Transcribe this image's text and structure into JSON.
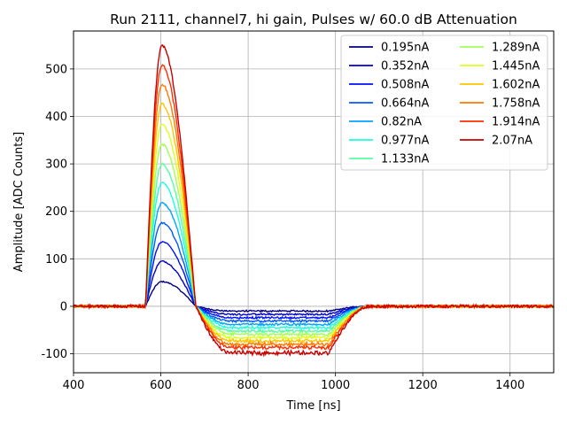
{
  "chart_data": {
    "type": "line",
    "title": "Run 2111, channel7, hi gain, Pulses w/ 60.0 dB Attenuation",
    "xlabel": "Time [ns]",
    "ylabel": "Amplitude [ADC Counts]",
    "xlim": [
      400,
      1500
    ],
    "ylim": [
      -140,
      580
    ],
    "xticks": [
      400,
      600,
      800,
      1000,
      1200,
      1400
    ],
    "yticks": [
      -100,
      0,
      100,
      200,
      300,
      400,
      500
    ],
    "grid": true,
    "legend_position": "top-right",
    "legend_columns": 2,
    "series": [
      {
        "name": "0.195nA",
        "color": "#00007f",
        "peak": 52,
        "undershoot": -10
      },
      {
        "name": "0.352nA",
        "color": "#0000c8",
        "peak": 95,
        "undershoot": -17
      },
      {
        "name": "0.508nA",
        "color": "#0010ff",
        "peak": 136,
        "undershoot": -24
      },
      {
        "name": "0.664nA",
        "color": "#0058ff",
        "peak": 176,
        "undershoot": -31
      },
      {
        "name": "0.82nA",
        "color": "#00a4ff",
        "peak": 218,
        "undershoot": -38
      },
      {
        "name": "0.977nA",
        "color": "#1cffdb",
        "peak": 260,
        "undershoot": -45
      },
      {
        "name": "1.133nA",
        "color": "#55ffa3",
        "peak": 300,
        "undershoot": -52
      },
      {
        "name": "1.289nA",
        "color": "#a3ff55",
        "peak": 342,
        "undershoot": -59
      },
      {
        "name": "1.445nA",
        "color": "#dbff1c",
        "peak": 384,
        "undershoot": -66
      },
      {
        "name": "1.602nA",
        "color": "#ffc400",
        "peak": 426,
        "undershoot": -73
      },
      {
        "name": "1.758nA",
        "color": "#ff7a00",
        "peak": 468,
        "undershoot": -80
      },
      {
        "name": "1.914nA",
        "color": "#ff3000",
        "peak": 508,
        "undershoot": -87
      },
      {
        "name": "2.07nA",
        "color": "#c80000",
        "peak": 550,
        "undershoot": -98
      }
    ]
  }
}
